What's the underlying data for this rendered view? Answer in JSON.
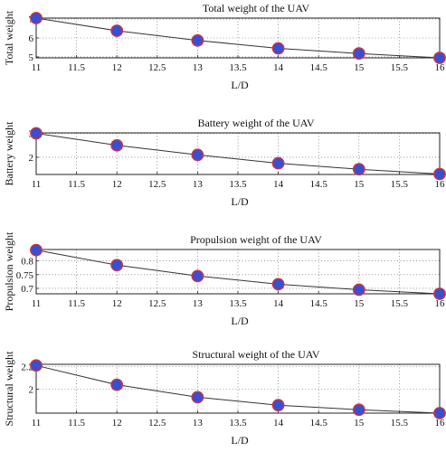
{
  "chart_data": [
    {
      "type": "line",
      "title": "Total weight of the UAV",
      "xlabel": "L/D",
      "ylabel": "Total weight",
      "x": [
        11,
        12,
        13,
        14,
        15,
        16
      ],
      "y": [
        7.05,
        6.38,
        5.87,
        5.45,
        5.18,
        4.95
      ],
      "xlim": [
        11,
        16
      ],
      "ylim": [
        4.95,
        7.05
      ],
      "xticks": [
        "11",
        "11.5",
        "12",
        "12.5",
        "13",
        "13.5",
        "14",
        "14.5",
        "15",
        "15.5",
        "16"
      ],
      "yticks": [
        "5",
        "6",
        "7"
      ],
      "grid": true,
      "marker_fill": "#3a4fcf",
      "marker_edge": "#cc3344",
      "line_color": "#333333"
    },
    {
      "type": "line",
      "title": "Battery weight of the UAV",
      "xlabel": "L/D",
      "ylabel": "Battery weight",
      "x": [
        11,
        12,
        13,
        14,
        15,
        16
      ],
      "y": [
        3.0,
        2.5,
        2.1,
        1.75,
        1.5,
        1.3
      ],
      "xlim": [
        11,
        16
      ],
      "ylim": [
        1.28,
        3.02
      ],
      "xticks": [
        "11",
        "11.5",
        "12",
        "12.5",
        "13",
        "13.5",
        "14",
        "14.5",
        "15",
        "15.5",
        "16"
      ],
      "yticks": [
        "2",
        "3"
      ],
      "grid": true,
      "marker_fill": "#3a4fcf",
      "marker_edge": "#cc3344",
      "line_color": "#333333"
    },
    {
      "type": "line",
      "title": "Propulsion weight of the UAV",
      "xlabel": "L/D",
      "ylabel": "Propulsion weight",
      "x": [
        11,
        12,
        13,
        14,
        15,
        16
      ],
      "y": [
        0.84,
        0.785,
        0.745,
        0.715,
        0.695,
        0.68
      ],
      "xlim": [
        11,
        16
      ],
      "ylim": [
        0.68,
        0.842
      ],
      "xticks": [
        "11",
        "11.5",
        "12",
        "12.5",
        "13",
        "13.5",
        "14",
        "14.5",
        "15",
        "15.5",
        "16"
      ],
      "yticks": [
        "0.7",
        "0.75",
        "0.8"
      ],
      "grid": true,
      "marker_fill": "#3a4fcf",
      "marker_edge": "#cc3344",
      "line_color": "#333333"
    },
    {
      "type": "line",
      "title": "Structural weight of the UAV",
      "xlabel": "L/D",
      "ylabel": "Structural weight",
      "x": [
        11,
        12,
        13,
        14,
        15,
        16
      ],
      "y": [
        2.21,
        2.04,
        1.93,
        1.86,
        1.82,
        1.79
      ],
      "xlim": [
        11,
        16
      ],
      "ylim": [
        1.79,
        2.22
      ],
      "xticks": [
        "11",
        "11.5",
        "12",
        "12.5",
        "13",
        "13.5",
        "14",
        "14.5",
        "15",
        "15.5",
        "16"
      ],
      "yticks": [
        "2",
        "2.2"
      ],
      "grid": true,
      "marker_fill": "#3a4fcf",
      "marker_edge": "#cc3344",
      "line_color": "#333333"
    }
  ]
}
